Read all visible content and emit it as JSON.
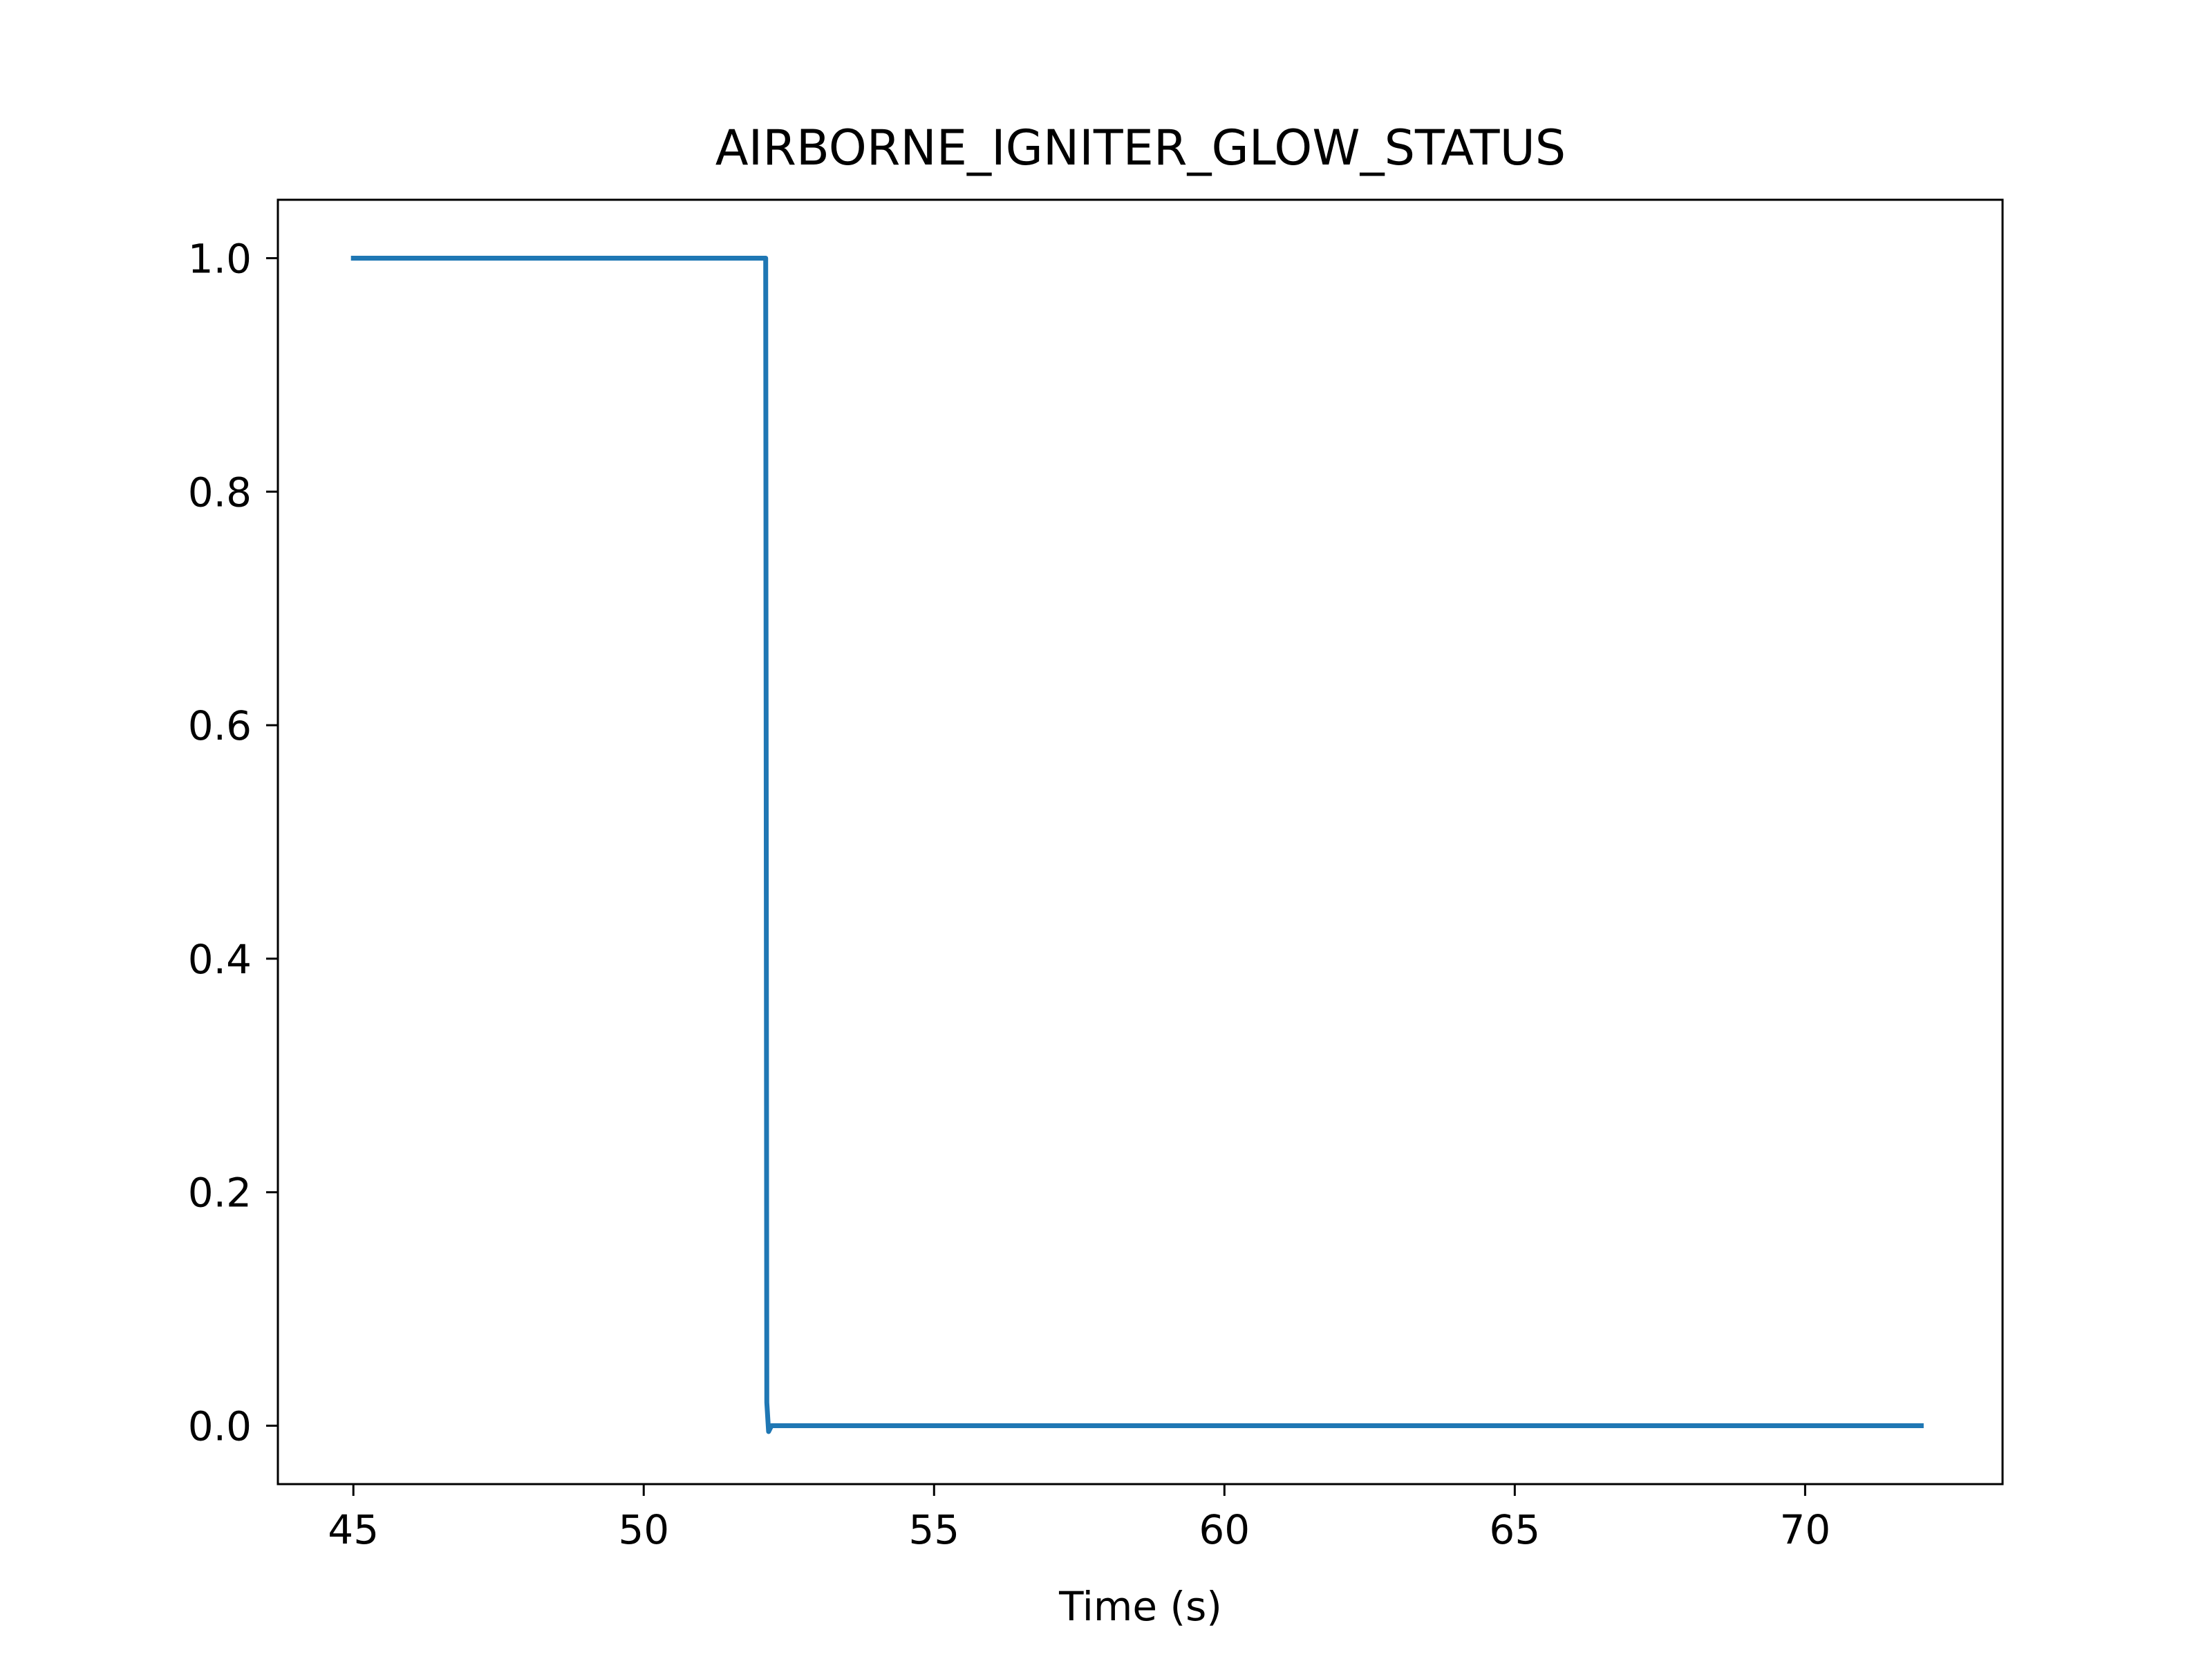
{
  "chart_data": {
    "type": "line",
    "title": "AIRBORNE_IGNITER_GLOW_STATUS",
    "xlabel": "Time (s)",
    "ylabel": "",
    "xlim": [
      43.7,
      73.4
    ],
    "ylim": [
      -0.05,
      1.05
    ],
    "x_ticks": [
      45,
      50,
      55,
      60,
      65,
      70
    ],
    "x_tick_labels": [
      "45",
      "50",
      "55",
      "60",
      "65",
      "70"
    ],
    "y_ticks": [
      0.0,
      0.2,
      0.4,
      0.6,
      0.8,
      1.0
    ],
    "y_tick_labels": [
      "0.0",
      "0.2",
      "0.4",
      "0.6",
      "0.8",
      "1.0"
    ],
    "grid": false,
    "legend": "none",
    "series": [
      {
        "color": "#1f77b4",
        "x": [
          45.0,
          52.1,
          52.12,
          52.15,
          52.2,
          72.0
        ],
        "y": [
          1.0,
          1.0,
          0.02,
          -0.005,
          0.0,
          0.0
        ]
      }
    ]
  }
}
